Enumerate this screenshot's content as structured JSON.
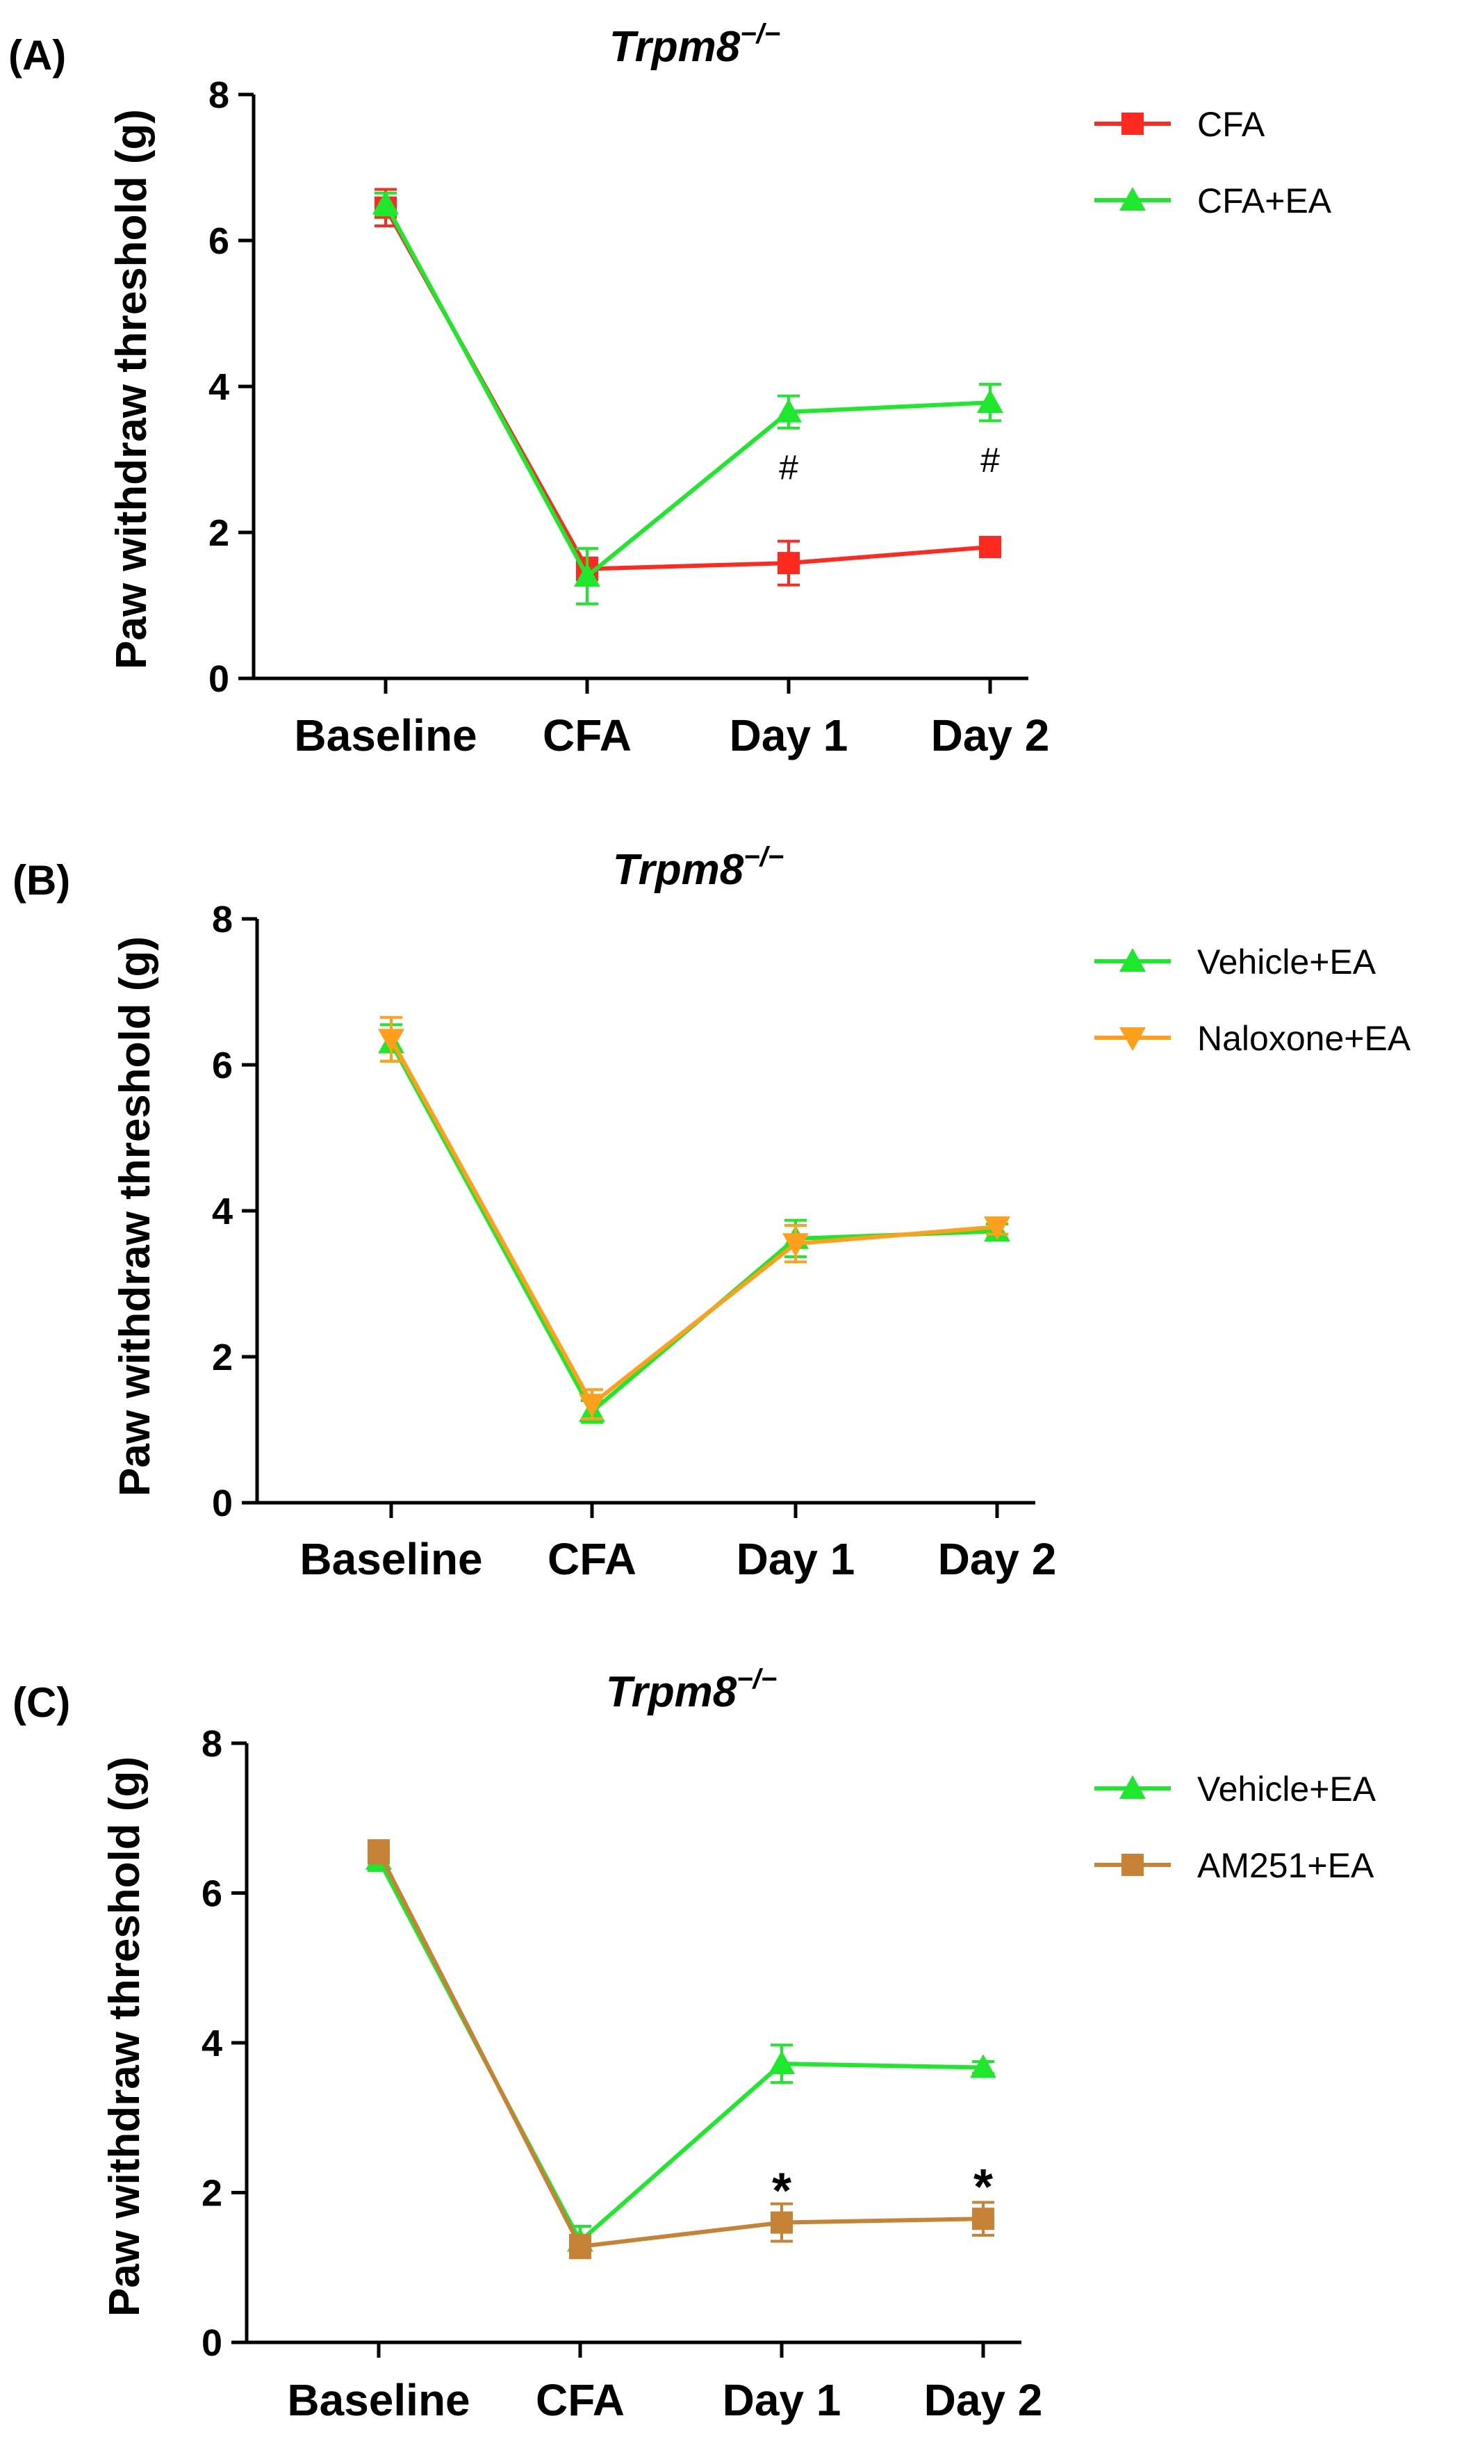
{
  "chart_data": [
    {
      "type": "line",
      "panel_label": "(A)",
      "title": "Trpm8",
      "title_superscript": "−/−",
      "ylabel": "Paw withdraw threshold (g)",
      "xlabel": "",
      "ylim": [
        0,
        8
      ],
      "yticks": [
        0,
        2,
        4,
        6,
        8
      ],
      "categories": [
        "Baseline",
        "CFA",
        "Day 1",
        "Day 2"
      ],
      "legend_position": "top-right",
      "series": [
        {
          "name": "CFA",
          "color": "#ff2a1f",
          "marker": "square",
          "values": [
            6.45,
            1.5,
            1.58,
            1.8
          ],
          "errors": [
            0.25,
            0.15,
            0.3,
            0.12
          ]
        },
        {
          "name": "CFA+EA",
          "color": "#1ee82c",
          "marker": "triangle-up",
          "values": [
            6.5,
            1.4,
            3.65,
            3.78
          ],
          "errors": [
            0.15,
            0.38,
            0.22,
            0.25
          ]
        }
      ],
      "annotations": [
        {
          "category": "Day 1",
          "y": 2.9,
          "text": "#"
        },
        {
          "category": "Day 2",
          "y": 3.0,
          "text": "#"
        }
      ]
    },
    {
      "type": "line",
      "panel_label": "(B)",
      "title": "Trpm8",
      "title_superscript": "−/−",
      "ylabel": "Paw withdraw threshold (g)",
      "xlabel": "",
      "ylim": [
        0,
        8
      ],
      "yticks": [
        0,
        2,
        4,
        6,
        8
      ],
      "categories": [
        "Baseline",
        "CFA",
        "Day 1",
        "Day 2"
      ],
      "legend_position": "top-right",
      "series": [
        {
          "name": "Vehicle+EA",
          "color": "#1ee82c",
          "marker": "triangle-up",
          "values": [
            6.3,
            1.25,
            3.62,
            3.72
          ],
          "errors": [
            0.25,
            0.15,
            0.25,
            0.1
          ]
        },
        {
          "name": "Naloxone+EA",
          "color": "#ff9f1c",
          "marker": "triangle-down",
          "values": [
            6.35,
            1.35,
            3.55,
            3.78
          ],
          "errors": [
            0.3,
            0.2,
            0.25,
            0.1
          ]
        }
      ],
      "annotations": []
    },
    {
      "type": "line",
      "panel_label": "(C)",
      "title": "Trpm8",
      "title_superscript": "−/−",
      "ylabel": "Paw withdraw threshold (g)",
      "xlabel": "",
      "ylim": [
        0,
        8
      ],
      "yticks": [
        0,
        2,
        4,
        6,
        8
      ],
      "categories": [
        "Baseline",
        "CFA",
        "Day 1",
        "Day 2"
      ],
      "legend_position": "top-right",
      "series": [
        {
          "name": "Vehicle+EA",
          "color": "#1ee82c",
          "marker": "triangle-up",
          "values": [
            6.45,
            1.35,
            3.72,
            3.67
          ],
          "errors": [
            0.15,
            0.2,
            0.25,
            0.08
          ]
        },
        {
          "name": "AM251+EA",
          "color": "#c68235",
          "marker": "square",
          "values": [
            6.55,
            1.28,
            1.6,
            1.65
          ],
          "errors": [
            0.15,
            0.15,
            0.25,
            0.22
          ]
        }
      ],
      "annotations": [
        {
          "category": "Day 1",
          "y": 2.15,
          "text": "*"
        },
        {
          "category": "Day 2",
          "y": 2.2,
          "text": "*"
        }
      ]
    }
  ]
}
